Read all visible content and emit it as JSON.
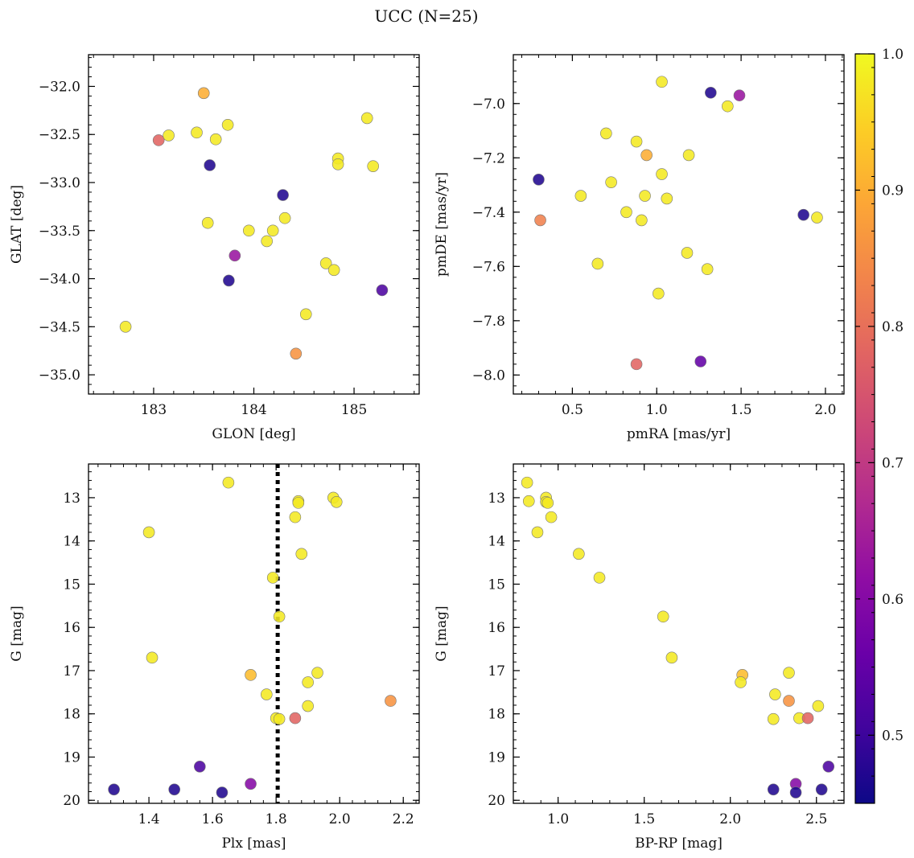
{
  "figure_title": "UCC (N=25)",
  "colorbar": {
    "colormap": "plasma",
    "range": [
      0.45,
      1.0
    ],
    "ticks": [
      "0.5",
      "0.6",
      "0.7",
      "0.8",
      "0.9",
      "1.0"
    ],
    "tick_values": [
      0.5,
      0.6,
      0.7,
      0.8,
      0.9,
      1.0
    ]
  },
  "chart_data": [
    {
      "type": "scatter",
      "xlabel": "GLON [deg]",
      "ylabel": "GLAT [deg]",
      "xlim": [
        182.35,
        185.65
      ],
      "ylim": [
        -35.2,
        -31.67
      ],
      "y_inverted": false,
      "xticks": [
        183,
        184,
        185
      ],
      "xtick_labels": [
        "183",
        "184",
        "185"
      ],
      "yticks": [
        -35.0,
        -34.5,
        -34.0,
        -33.5,
        -33.0,
        -32.5,
        -32.0
      ],
      "ytick_labels": [
        "−35.0",
        "−34.5",
        "−34.0",
        "−33.5",
        "−33.0",
        "−32.5",
        "−32.0"
      ],
      "points": [
        {
          "x": 183.5,
          "y": -32.07,
          "c": 0.9
        },
        {
          "x": 183.05,
          "y": -32.56,
          "c": 0.78
        },
        {
          "x": 183.15,
          "y": -32.51,
          "c": 0.98
        },
        {
          "x": 183.43,
          "y": -32.48,
          "c": 0.98
        },
        {
          "x": 183.62,
          "y": -32.55,
          "c": 0.98
        },
        {
          "x": 183.74,
          "y": -32.4,
          "c": 0.98
        },
        {
          "x": 183.56,
          "y": -32.82,
          "c": 0.47
        },
        {
          "x": 184.29,
          "y": -33.13,
          "c": 0.47
        },
        {
          "x": 184.84,
          "y": -32.75,
          "c": 0.98
        },
        {
          "x": 184.84,
          "y": -32.81,
          "c": 0.98
        },
        {
          "x": 185.13,
          "y": -32.33,
          "c": 0.98
        },
        {
          "x": 185.19,
          "y": -32.83,
          "c": 0.98
        },
        {
          "x": 183.54,
          "y": -33.42,
          "c": 0.98
        },
        {
          "x": 183.95,
          "y": -33.5,
          "c": 0.98
        },
        {
          "x": 184.19,
          "y": -33.5,
          "c": 0.98
        },
        {
          "x": 184.31,
          "y": -33.37,
          "c": 0.98
        },
        {
          "x": 184.13,
          "y": -33.61,
          "c": 0.98
        },
        {
          "x": 183.81,
          "y": -33.76,
          "c": 0.63
        },
        {
          "x": 183.75,
          "y": -34.02,
          "c": 0.47
        },
        {
          "x": 184.72,
          "y": -33.84,
          "c": 0.98
        },
        {
          "x": 184.8,
          "y": -33.91,
          "c": 0.98
        },
        {
          "x": 185.28,
          "y": -34.12,
          "c": 0.52
        },
        {
          "x": 184.52,
          "y": -34.37,
          "c": 0.98
        },
        {
          "x": 182.72,
          "y": -34.5,
          "c": 0.98
        },
        {
          "x": 184.42,
          "y": -34.78,
          "c": 0.86
        }
      ]
    },
    {
      "type": "scatter",
      "xlabel": "pmRA [mas/yr]",
      "ylabel": "pmDE [mas/yr]",
      "xlim": [
        0.15,
        2.11
      ],
      "ylim": [
        -8.07,
        -6.82
      ],
      "y_inverted": false,
      "xticks": [
        0.5,
        1.0,
        1.5,
        2.0
      ],
      "xtick_labels": [
        "0.5",
        "1.0",
        "1.5",
        "2.0"
      ],
      "yticks": [
        -8.0,
        -7.8,
        -7.6,
        -7.4,
        -7.2,
        -7.0
      ],
      "ytick_labels": [
        "−8.0",
        "−7.8",
        "−7.6",
        "−7.4",
        "−7.2",
        "−7.0"
      ],
      "points": [
        {
          "x": 1.03,
          "y": -6.92,
          "c": 0.98
        },
        {
          "x": 1.32,
          "y": -6.96,
          "c": 0.47
        },
        {
          "x": 1.49,
          "y": -6.97,
          "c": 0.63
        },
        {
          "x": 1.42,
          "y": -7.01,
          "c": 0.98
        },
        {
          "x": 0.7,
          "y": -7.11,
          "c": 0.98
        },
        {
          "x": 0.88,
          "y": -7.14,
          "c": 0.98
        },
        {
          "x": 0.94,
          "y": -7.19,
          "c": 0.9
        },
        {
          "x": 1.19,
          "y": -7.19,
          "c": 0.98
        },
        {
          "x": 1.03,
          "y": -7.26,
          "c": 0.98
        },
        {
          "x": 0.3,
          "y": -7.28,
          "c": 0.47
        },
        {
          "x": 0.73,
          "y": -7.29,
          "c": 0.98
        },
        {
          "x": 0.93,
          "y": -7.34,
          "c": 0.98
        },
        {
          "x": 0.55,
          "y": -7.34,
          "c": 0.98
        },
        {
          "x": 1.06,
          "y": -7.35,
          "c": 0.98
        },
        {
          "x": 0.82,
          "y": -7.4,
          "c": 0.98
        },
        {
          "x": 1.87,
          "y": -7.41,
          "c": 0.47
        },
        {
          "x": 1.95,
          "y": -7.42,
          "c": 0.98
        },
        {
          "x": 0.31,
          "y": -7.43,
          "c": 0.83
        },
        {
          "x": 0.91,
          "y": -7.43,
          "c": 0.98
        },
        {
          "x": 1.18,
          "y": -7.55,
          "c": 0.98
        },
        {
          "x": 0.65,
          "y": -7.59,
          "c": 0.98
        },
        {
          "x": 1.3,
          "y": -7.61,
          "c": 0.98
        },
        {
          "x": 1.01,
          "y": -7.7,
          "c": 0.98
        },
        {
          "x": 0.88,
          "y": -7.96,
          "c": 0.78
        },
        {
          "x": 1.26,
          "y": -7.95,
          "c": 0.55
        }
      ]
    },
    {
      "type": "scatter",
      "xlabel": "Plx [mas]",
      "ylabel": "G [mag]",
      "xlim": [
        1.21,
        2.25
      ],
      "ylim": [
        20.07,
        12.22
      ],
      "y_inverted": true,
      "xticks": [
        1.4,
        1.6,
        1.8,
        2.0,
        2.2
      ],
      "xtick_labels": [
        "1.4",
        "1.6",
        "1.8",
        "2.0",
        "2.2"
      ],
      "yticks": [
        13,
        14,
        15,
        16,
        17,
        18,
        19,
        20
      ],
      "ytick_labels": [
        "13",
        "14",
        "15",
        "16",
        "17",
        "18",
        "19",
        "20"
      ],
      "vline": {
        "x": 1.805,
        "style": "dotted"
      },
      "points": [
        {
          "x": 1.65,
          "y": 12.65,
          "c": 0.98
        },
        {
          "x": 1.98,
          "y": 13.0,
          "c": 0.98
        },
        {
          "x": 1.87,
          "y": 13.08,
          "c": 0.98
        },
        {
          "x": 1.87,
          "y": 13.12,
          "c": 0.98
        },
        {
          "x": 1.99,
          "y": 13.1,
          "c": 0.98
        },
        {
          "x": 1.86,
          "y": 13.45,
          "c": 0.98
        },
        {
          "x": 1.4,
          "y": 13.8,
          "c": 0.98
        },
        {
          "x": 1.88,
          "y": 14.3,
          "c": 0.98
        },
        {
          "x": 1.79,
          "y": 14.85,
          "c": 0.98
        },
        {
          "x": 1.81,
          "y": 15.75,
          "c": 0.98
        },
        {
          "x": 1.41,
          "y": 16.7,
          "c": 0.98
        },
        {
          "x": 1.93,
          "y": 17.05,
          "c": 0.98
        },
        {
          "x": 1.72,
          "y": 17.1,
          "c": 0.92
        },
        {
          "x": 1.9,
          "y": 17.27,
          "c": 0.98
        },
        {
          "x": 1.77,
          "y": 17.55,
          "c": 0.98
        },
        {
          "x": 2.16,
          "y": 17.7,
          "c": 0.86
        },
        {
          "x": 1.9,
          "y": 17.82,
          "c": 0.98
        },
        {
          "x": 1.8,
          "y": 18.1,
          "c": 0.98
        },
        {
          "x": 1.86,
          "y": 18.1,
          "c": 0.78
        },
        {
          "x": 1.81,
          "y": 18.12,
          "c": 0.98
        },
        {
          "x": 1.56,
          "y": 19.22,
          "c": 0.52
        },
        {
          "x": 1.72,
          "y": 19.62,
          "c": 0.6
        },
        {
          "x": 1.29,
          "y": 19.75,
          "c": 0.47
        },
        {
          "x": 1.48,
          "y": 19.75,
          "c": 0.47
        },
        {
          "x": 1.63,
          "y": 19.82,
          "c": 0.47
        }
      ]
    },
    {
      "type": "scatter",
      "xlabel": "BP-RP [mag]",
      "ylabel": "G [mag]",
      "xlim": [
        0.74,
        2.66
      ],
      "ylim": [
        20.07,
        12.22
      ],
      "y_inverted": true,
      "xticks": [
        1.0,
        1.5,
        2.0,
        2.5
      ],
      "xtick_labels": [
        "1.0",
        "1.5",
        "2.0",
        "2.5"
      ],
      "yticks": [
        13,
        14,
        15,
        16,
        17,
        18,
        19,
        20
      ],
      "ytick_labels": [
        "13",
        "14",
        "15",
        "16",
        "17",
        "18",
        "19",
        "20"
      ],
      "points": [
        {
          "x": 0.82,
          "y": 12.65,
          "c": 0.98
        },
        {
          "x": 0.93,
          "y": 13.0,
          "c": 0.98
        },
        {
          "x": 0.83,
          "y": 13.08,
          "c": 0.98
        },
        {
          "x": 0.93,
          "y": 13.1,
          "c": 0.98
        },
        {
          "x": 0.94,
          "y": 13.12,
          "c": 0.98
        },
        {
          "x": 0.96,
          "y": 13.45,
          "c": 0.98
        },
        {
          "x": 0.88,
          "y": 13.8,
          "c": 0.98
        },
        {
          "x": 1.12,
          "y": 14.3,
          "c": 0.98
        },
        {
          "x": 1.24,
          "y": 14.85,
          "c": 0.98
        },
        {
          "x": 1.61,
          "y": 15.75,
          "c": 0.98
        },
        {
          "x": 1.66,
          "y": 16.7,
          "c": 0.98
        },
        {
          "x": 2.34,
          "y": 17.05,
          "c": 0.98
        },
        {
          "x": 2.07,
          "y": 17.1,
          "c": 0.92
        },
        {
          "x": 2.06,
          "y": 17.27,
          "c": 0.98
        },
        {
          "x": 2.26,
          "y": 17.55,
          "c": 0.98
        },
        {
          "x": 2.34,
          "y": 17.7,
          "c": 0.86
        },
        {
          "x": 2.51,
          "y": 17.82,
          "c": 0.98
        },
        {
          "x": 2.4,
          "y": 18.1,
          "c": 0.98
        },
        {
          "x": 2.45,
          "y": 18.1,
          "c": 0.78
        },
        {
          "x": 2.25,
          "y": 18.12,
          "c": 0.98
        },
        {
          "x": 2.57,
          "y": 19.22,
          "c": 0.52
        },
        {
          "x": 2.38,
          "y": 19.62,
          "c": 0.6
        },
        {
          "x": 2.25,
          "y": 19.75,
          "c": 0.47
        },
        {
          "x": 2.53,
          "y": 19.75,
          "c": 0.47
        },
        {
          "x": 2.38,
          "y": 19.82,
          "c": 0.47
        }
      ]
    }
  ]
}
